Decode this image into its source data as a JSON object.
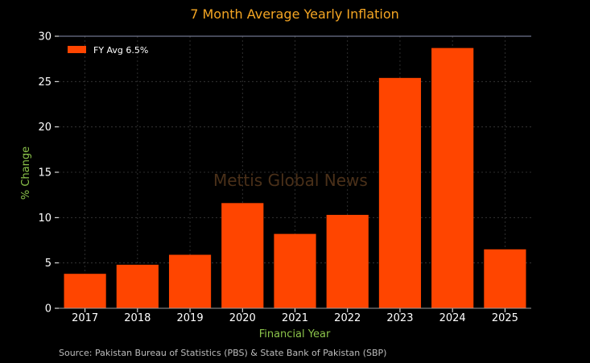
{
  "chart_data": {
    "type": "bar",
    "title": "7 Month Average Yearly Inflation",
    "xlabel": "Financial Year",
    "ylabel": "% Change",
    "categories": [
      "2017",
      "2018",
      "2019",
      "2020",
      "2021",
      "2022",
      "2023",
      "2024",
      "2025"
    ],
    "series": [
      {
        "name": "FY Avg 6.5%",
        "values": [
          3.8,
          4.8,
          5.9,
          11.6,
          8.2,
          10.3,
          25.4,
          28.7,
          6.5
        ]
      }
    ],
    "yticks": [
      "0",
      "5",
      "10",
      "15",
      "20",
      "25",
      "30"
    ],
    "ylim": [
      0,
      30
    ],
    "grid": true,
    "legend_position": "top-left",
    "colors": {
      "bar": "#ff4500",
      "title": "#f5a623",
      "axis_label": "#8bc34a",
      "tick": "#ffffff",
      "background": "#000000"
    }
  },
  "watermark": "Mettis Global News",
  "source": "Source: Pakistan Bureau of Statistics (PBS) & State Bank of Pakistan (SBP)"
}
